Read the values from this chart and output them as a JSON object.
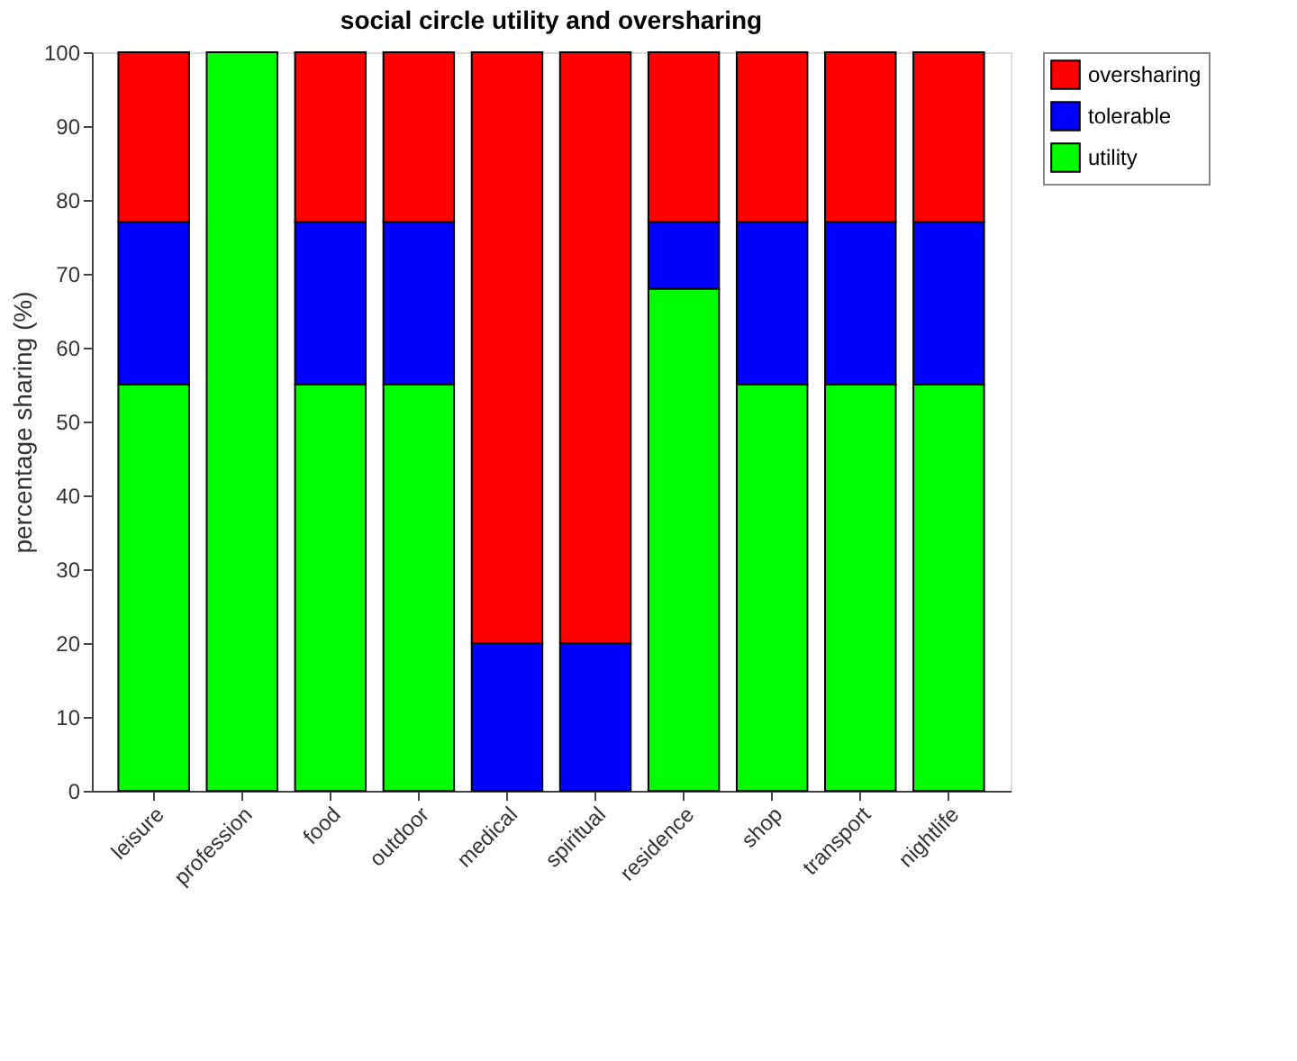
{
  "chart_data": {
    "type": "bar",
    "title": "social circle utility and oversharing",
    "ylabel": "percentage sharing (%)",
    "categories": [
      "leisure",
      "profession",
      "food",
      "outdoor",
      "medical",
      "spiritual",
      "residence",
      "shop",
      "transport",
      "nightlife"
    ],
    "stacked": true,
    "series": [
      {
        "name": "utility",
        "color": "#00ff00",
        "values": [
          55,
          100,
          55,
          55,
          0,
          0,
          68,
          55,
          55,
          55
        ]
      },
      {
        "name": "tolerable",
        "color": "#0000ff",
        "values": [
          22,
          0,
          22,
          22,
          20,
          20,
          9,
          22,
          22,
          22
        ]
      },
      {
        "name": "oversharing",
        "color": "#ff0000",
        "values": [
          23,
          0,
          23,
          23,
          80,
          80,
          23,
          23,
          23,
          23
        ]
      }
    ],
    "ylim": [
      0,
      100
    ],
    "yticks": [
      0,
      10,
      20,
      30,
      40,
      50,
      60,
      70,
      80,
      90,
      100
    ],
    "grid": false,
    "legend": "top right"
  }
}
